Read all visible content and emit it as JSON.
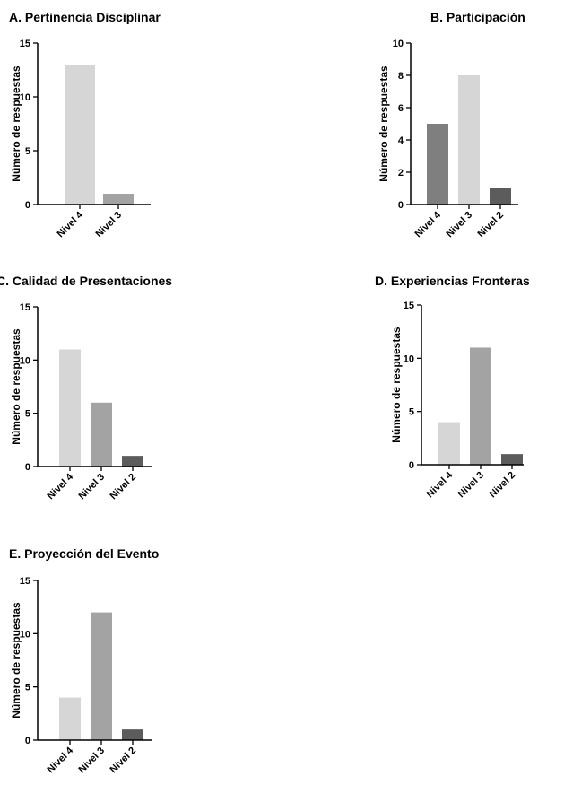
{
  "chart_data": [
    {
      "type": "bar",
      "title": "A. Pertinencia Disciplinar",
      "ylabel": "Número de respuestas",
      "xlabel": "",
      "categories": [
        "Nivel 4",
        "Nivel 3"
      ],
      "values": [
        13,
        1
      ],
      "colors": [
        "#d6d6d6",
        "#a3a3a3"
      ],
      "ylim": [
        0,
        15
      ],
      "yticks": [
        0,
        5,
        10,
        15
      ],
      "grid": false
    },
    {
      "type": "bar",
      "title": "B. Participación",
      "ylabel": "Número de respuestas",
      "xlabel": "",
      "categories": [
        "Nivel 4",
        "Nivel 3",
        "Nivel 2"
      ],
      "values": [
        5,
        8,
        1
      ],
      "colors": [
        "#7f7f7f",
        "#d6d6d6",
        "#5c5c5c"
      ],
      "ylim": [
        0,
        10
      ],
      "yticks": [
        0,
        2,
        4,
        6,
        8,
        10
      ],
      "grid": false
    },
    {
      "type": "bar",
      "title": "C. Calidad de Presentaciones",
      "ylabel": "Número de respuestas",
      "xlabel": "",
      "categories": [
        "Nivel 4",
        "Nivel 3",
        "Nivel 2"
      ],
      "values": [
        11,
        6,
        1
      ],
      "colors": [
        "#d6d6d6",
        "#a3a3a3",
        "#5c5c5c"
      ],
      "ylim": [
        0,
        15
      ],
      "yticks": [
        0,
        5,
        10,
        15
      ],
      "grid": false
    },
    {
      "type": "bar",
      "title": "D. Experiencias Fronteras",
      "ylabel": "Número de respuestas",
      "xlabel": "",
      "categories": [
        "Nivel 4",
        "Nivel 3",
        "Nivel 2"
      ],
      "values": [
        4,
        11,
        1
      ],
      "colors": [
        "#d6d6d6",
        "#a3a3a3",
        "#5c5c5c"
      ],
      "ylim": [
        0,
        15
      ],
      "yticks": [
        0,
        5,
        10,
        15
      ],
      "grid": false
    },
    {
      "type": "bar",
      "title": "E. Proyección del Evento",
      "ylabel": "Número de respuestas",
      "xlabel": "",
      "categories": [
        "Nivel 4",
        "Nivel 3",
        "Nivel 2"
      ],
      "values": [
        4,
        12,
        1
      ],
      "colors": [
        "#d6d6d6",
        "#a3a3a3",
        "#5c5c5c"
      ],
      "ylim": [
        0,
        15
      ],
      "yticks": [
        0,
        5,
        10,
        15
      ],
      "grid": false
    }
  ]
}
